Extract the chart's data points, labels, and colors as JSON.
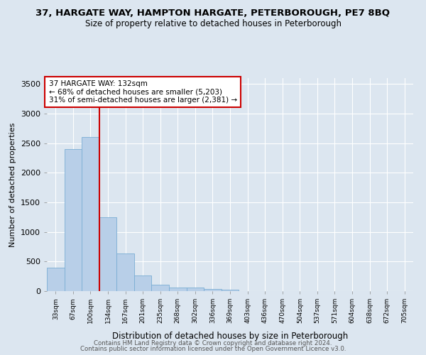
{
  "title": "37, HARGATE WAY, HAMPTON HARGATE, PETERBOROUGH, PE7 8BQ",
  "subtitle": "Size of property relative to detached houses in Peterborough",
  "xlabel": "Distribution of detached houses by size in Peterborough",
  "ylabel": "Number of detached properties",
  "footer1": "Contains HM Land Registry data © Crown copyright and database right 2024.",
  "footer2": "Contains public sector information licensed under the Open Government Licence v3.0.",
  "annotation_line1": "37 HARGATE WAY: 132sqm",
  "annotation_line2": "← 68% of detached houses are smaller (5,203)",
  "annotation_line3": "31% of semi-detached houses are larger (2,381) →",
  "bar_categories": [
    "33sqm",
    "67sqm",
    "100sqm",
    "134sqm",
    "167sqm",
    "201sqm",
    "235sqm",
    "268sqm",
    "302sqm",
    "336sqm",
    "369sqm",
    "403sqm",
    "436sqm",
    "470sqm",
    "504sqm",
    "537sqm",
    "571sqm",
    "604sqm",
    "638sqm",
    "672sqm",
    "705sqm"
  ],
  "bar_values": [
    400,
    2400,
    2600,
    1250,
    640,
    260,
    110,
    65,
    55,
    40,
    20,
    0,
    0,
    0,
    0,
    0,
    0,
    0,
    0,
    0,
    0
  ],
  "bar_color": "#b8cfe8",
  "bar_edge_color": "#7aadd4",
  "vline_x": 3.0,
  "vline_color": "#cc0000",
  "ylim": [
    0,
    3600
  ],
  "yticks": [
    0,
    500,
    1000,
    1500,
    2000,
    2500,
    3000,
    3500
  ],
  "background_color": "#dce6f0",
  "plot_bg_color": "#dce6f0",
  "grid_color": "#ffffff",
  "title_fontsize": 9.5,
  "subtitle_fontsize": 8.5
}
